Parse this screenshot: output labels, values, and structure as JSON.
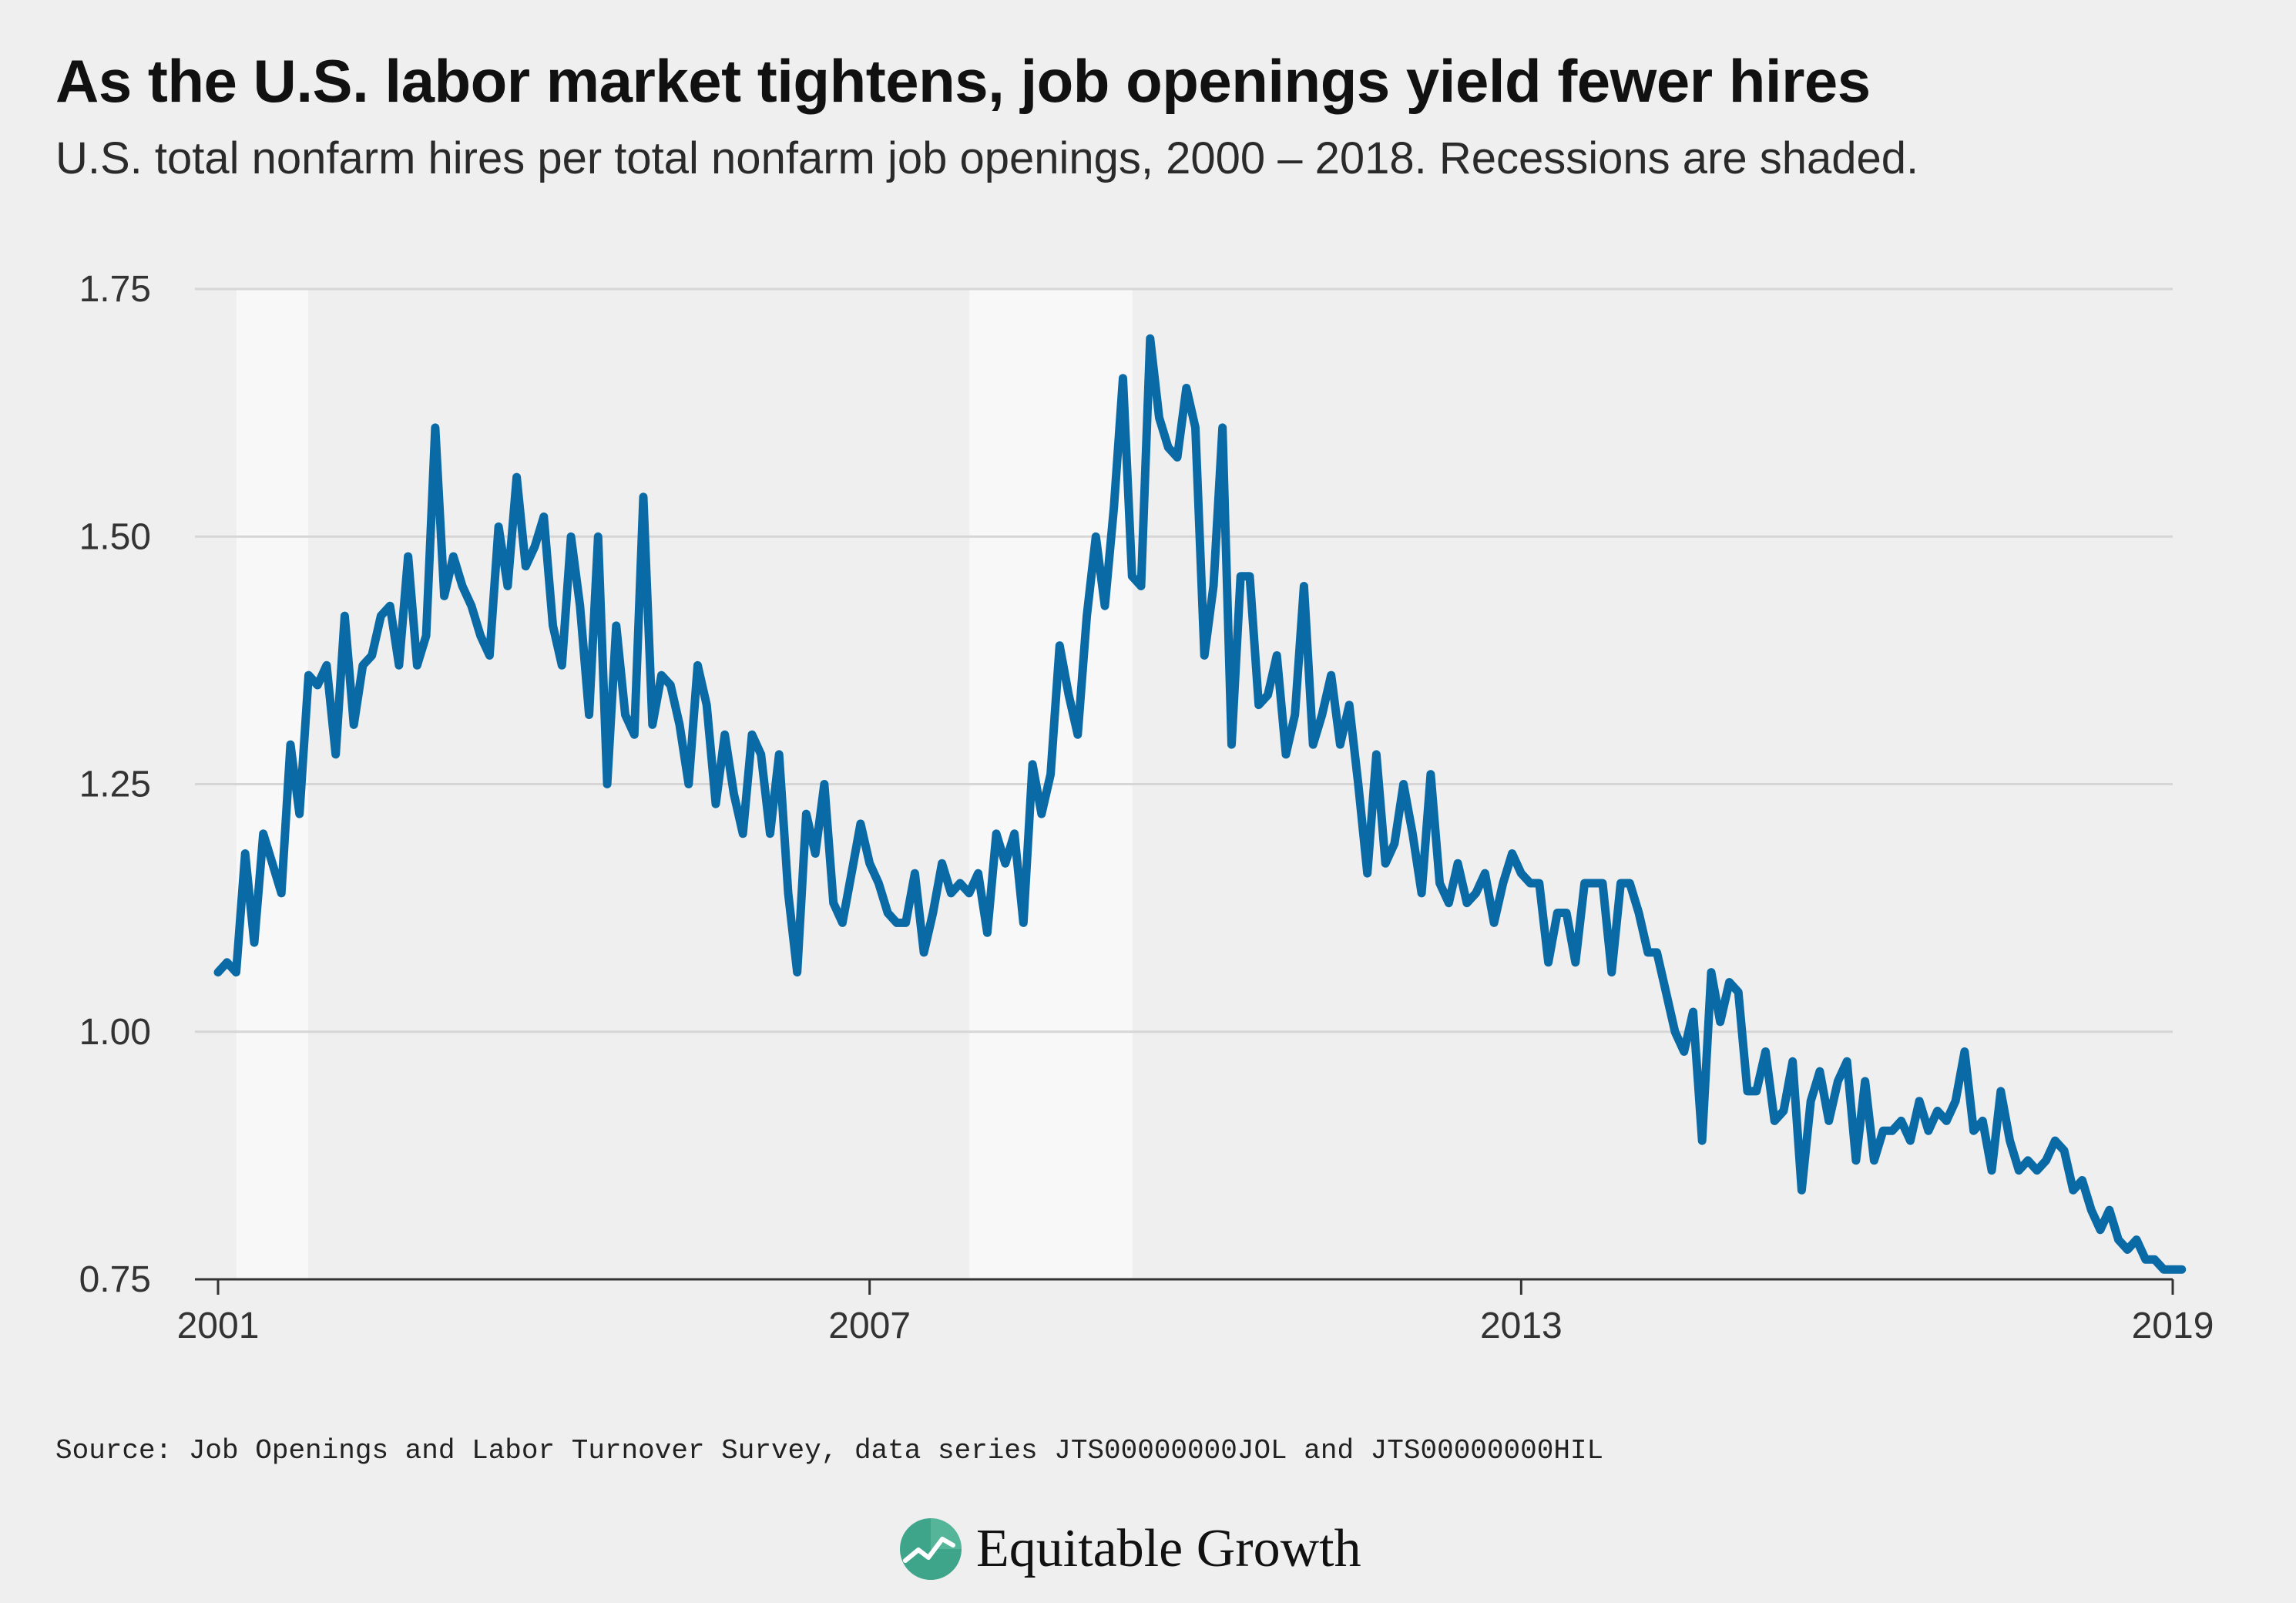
{
  "header": {
    "title": "As the U.S. labor market tightens, job openings yield fewer hires",
    "subtitle": "U.S. total nonfarm hires per total nonfarm job openings, 2000 – 2018. Recessions are shaded."
  },
  "footer": {
    "source": "Source: Job Openings and Labor Turnover Survey, data series JTS00000000JOL and JTS00000000HIL",
    "brand_name": "Equitable Growth",
    "brand_icon": "equitable-growth-logo-icon"
  },
  "colors": {
    "background": "#efefef",
    "line": "#0a6aa6",
    "recession_shade": "#f8f8f8",
    "gridline": "#d6d6d6",
    "logo_green": "#3fa58a"
  },
  "chart_data": {
    "type": "line",
    "title": "As the U.S. labor market tightens, job openings yield fewer hires",
    "subtitle": "U.S. total nonfarm hires per total nonfarm job openings, 2000 – 2018. Recessions are shaded.",
    "xlabel": "",
    "ylabel": "",
    "xlim": [
      2001,
      2019
    ],
    "ylim": [
      0.75,
      1.75
    ],
    "x_ticks": [
      2001,
      2007,
      2013,
      2019
    ],
    "x_tick_labels": [
      "2001",
      "2007",
      "2013",
      "2019"
    ],
    "y_ticks": [
      0.75,
      1.0,
      1.25,
      1.5,
      1.75
    ],
    "y_tick_labels": [
      "0.75",
      "1.00",
      "1.25",
      "1.50",
      "1.75"
    ],
    "grid": true,
    "legend": "none",
    "recessions": [
      {
        "start": 2001.17,
        "end": 2001.83
      },
      {
        "start": 2007.92,
        "end": 2009.42
      }
    ],
    "series": [
      {
        "color": "#0a6aa6",
        "x_start": 2001.0,
        "x_step": 0.0833333,
        "values": [
          1.06,
          1.07,
          1.06,
          1.18,
          1.09,
          1.2,
          1.17,
          1.14,
          1.29,
          1.22,
          1.36,
          1.35,
          1.37,
          1.28,
          1.42,
          1.31,
          1.37,
          1.38,
          1.42,
          1.43,
          1.37,
          1.48,
          1.37,
          1.4,
          1.61,
          1.44,
          1.48,
          1.45,
          1.43,
          1.4,
          1.38,
          1.51,
          1.45,
          1.56,
          1.47,
          1.49,
          1.52,
          1.41,
          1.37,
          1.5,
          1.43,
          1.32,
          1.5,
          1.25,
          1.41,
          1.32,
          1.3,
          1.54,
          1.31,
          1.36,
          1.35,
          1.31,
          1.25,
          1.37,
          1.33,
          1.23,
          1.3,
          1.24,
          1.2,
          1.3,
          1.28,
          1.2,
          1.28,
          1.14,
          1.06,
          1.22,
          1.18,
          1.25,
          1.13,
          1.11,
          1.16,
          1.21,
          1.17,
          1.15,
          1.12,
          1.11,
          1.11,
          1.16,
          1.08,
          1.12,
          1.17,
          1.14,
          1.15,
          1.14,
          1.16,
          1.1,
          1.2,
          1.17,
          1.2,
          1.11,
          1.27,
          1.22,
          1.26,
          1.39,
          1.34,
          1.3,
          1.42,
          1.5,
          1.43,
          1.53,
          1.66,
          1.46,
          1.45,
          1.7,
          1.62,
          1.59,
          1.58,
          1.65,
          1.61,
          1.38,
          1.45,
          1.61,
          1.29,
          1.46,
          1.46,
          1.33,
          1.34,
          1.38,
          1.28,
          1.32,
          1.45,
          1.29,
          1.32,
          1.36,
          1.29,
          1.33,
          1.25,
          1.16,
          1.28,
          1.17,
          1.19,
          1.25,
          1.2,
          1.14,
          1.26,
          1.15,
          1.13,
          1.17,
          1.13,
          1.14,
          1.16,
          1.11,
          1.15,
          1.18,
          1.16,
          1.15,
          1.15,
          1.07,
          1.12,
          1.12,
          1.07,
          1.15,
          1.15,
          1.15,
          1.06,
          1.15,
          1.15,
          1.12,
          1.08,
          1.08,
          1.04,
          1.0,
          0.98,
          1.02,
          0.89,
          1.06,
          1.01,
          1.05,
          1.04,
          0.94,
          0.94,
          0.98,
          0.91,
          0.92,
          0.97,
          0.84,
          0.93,
          0.96,
          0.91,
          0.95,
          0.97,
          0.87,
          0.95,
          0.87,
          0.9,
          0.9,
          0.91,
          0.89,
          0.93,
          0.9,
          0.92,
          0.91,
          0.93,
          0.98,
          0.9,
          0.91,
          0.86,
          0.94,
          0.89,
          0.86,
          0.87,
          0.86,
          0.87,
          0.89,
          0.88,
          0.84,
          0.85,
          0.82,
          0.8,
          0.82,
          0.79,
          0.78,
          0.79,
          0.77,
          0.77,
          0.76,
          0.76,
          0.76
        ]
      }
    ]
  }
}
